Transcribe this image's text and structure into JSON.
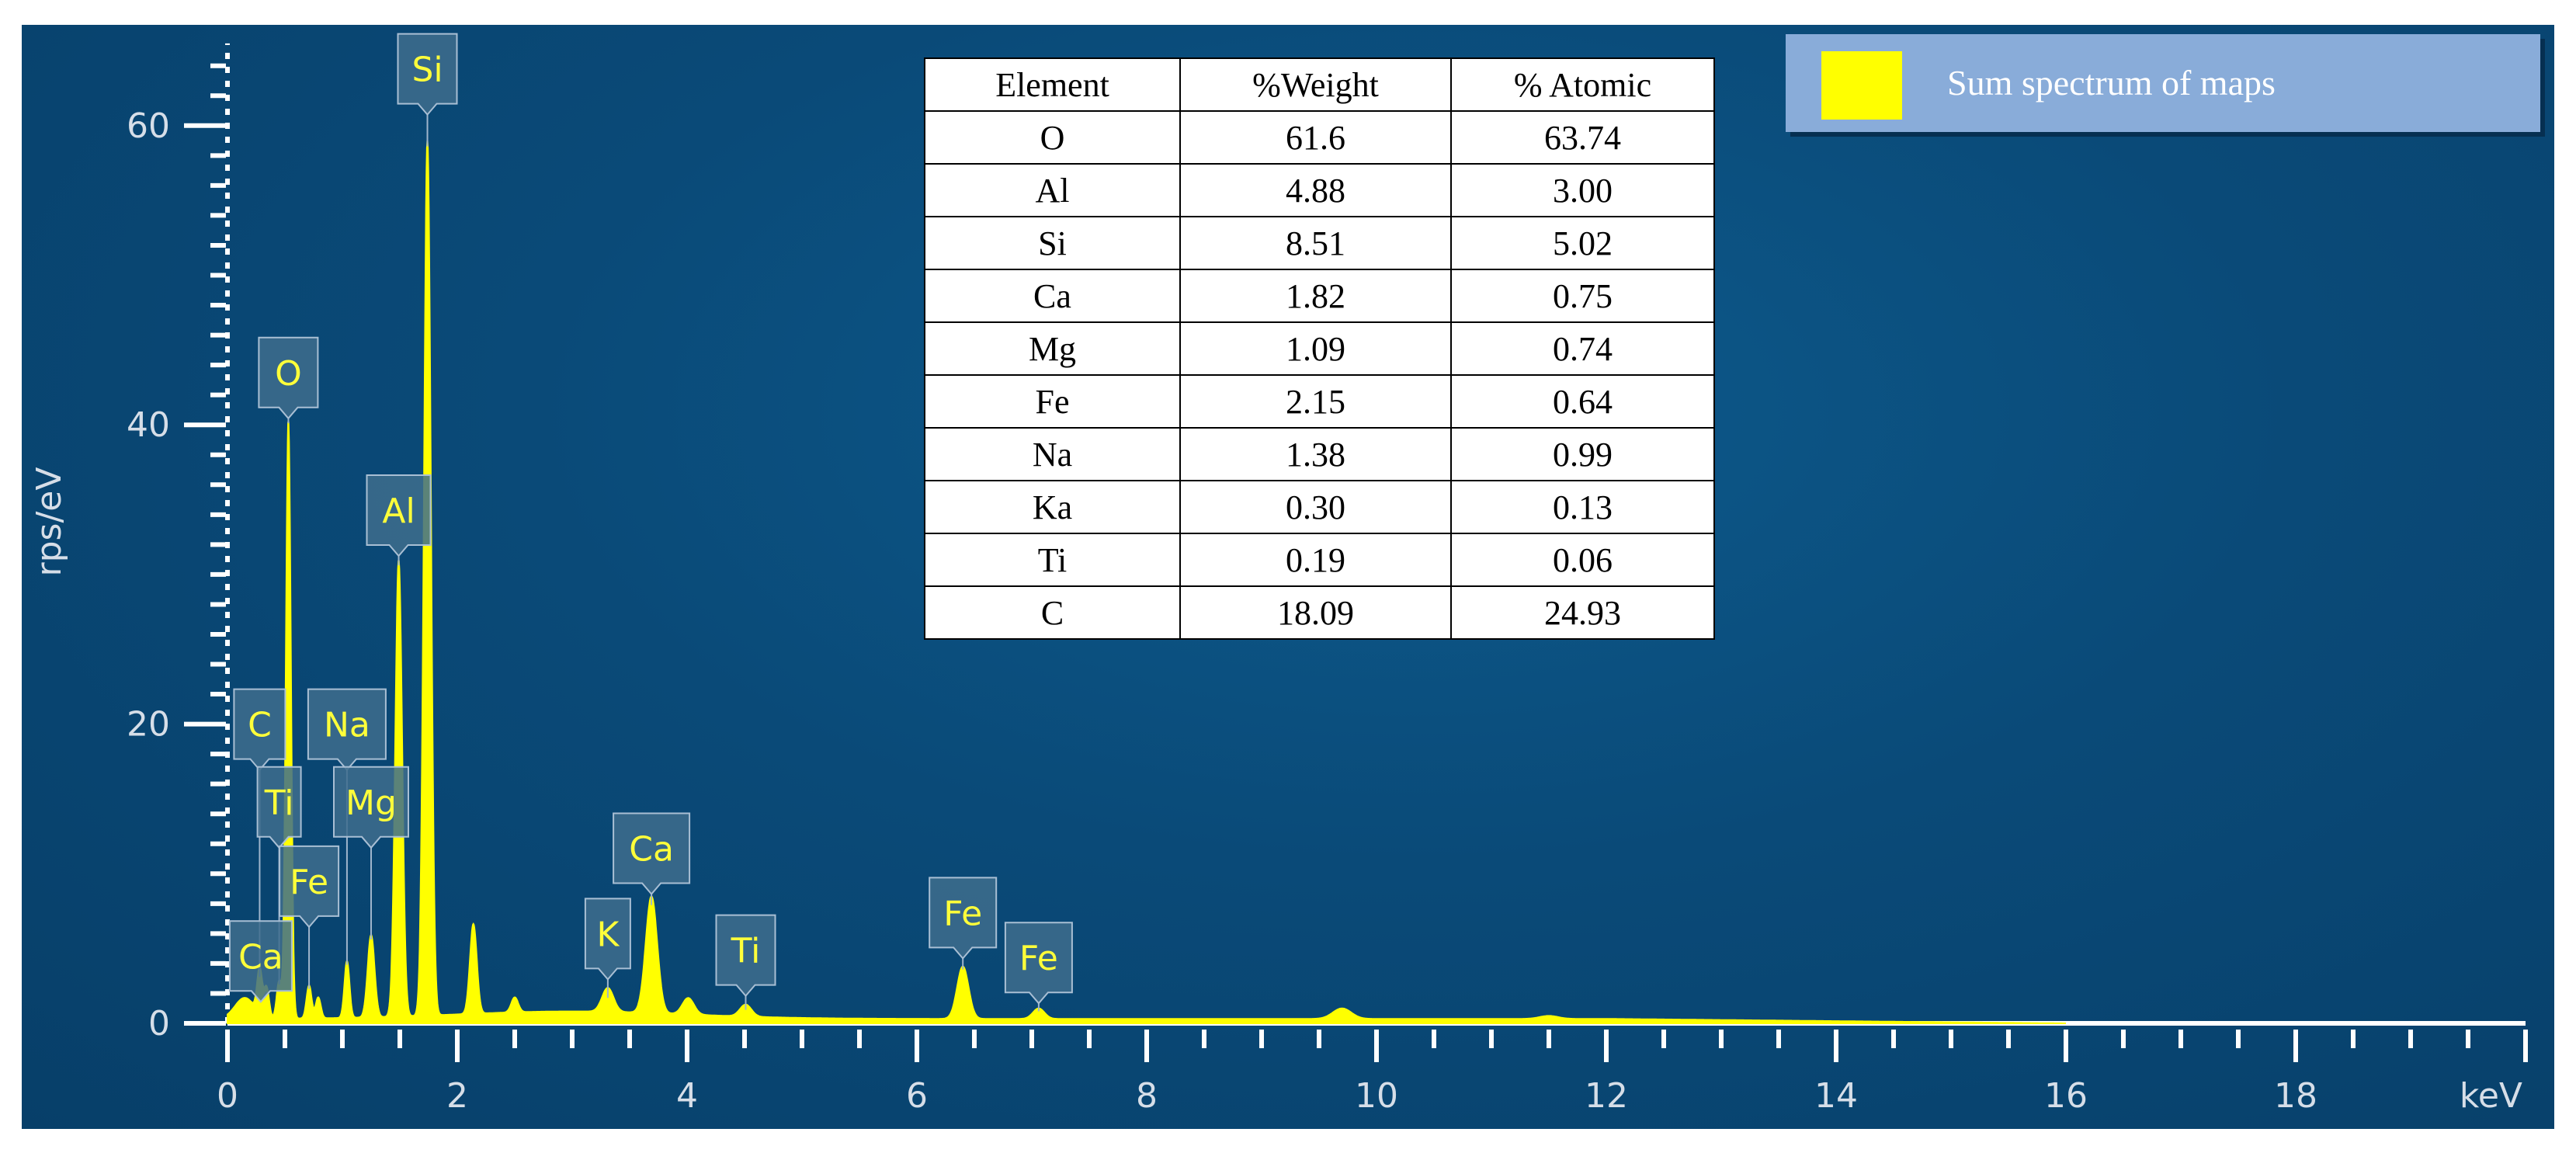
{
  "chart_data": {
    "type": "line",
    "xlabel": "keV",
    "ylabel": "rps/eV",
    "xlim": [
      0,
      20
    ],
    "ylim": [
      0,
      66
    ],
    "x_ticks": [
      "0",
      "2",
      "4",
      "6",
      "8",
      "10",
      "12",
      "14",
      "16",
      "18"
    ],
    "y_ticks": [
      "0",
      "20",
      "40",
      "60"
    ],
    "series": [
      {
        "name": "Sum spectrum of maps",
        "color": "#ffff00",
        "peaks": [
          {
            "x": 0.28,
            "y": 3.0
          },
          {
            "x": 0.34,
            "y": 2.0
          },
          {
            "x": 0.45,
            "y": 2.5
          },
          {
            "x": 0.53,
            "y": 40.0
          },
          {
            "x": 0.71,
            "y": 2.2
          },
          {
            "x": 0.79,
            "y": 1.4
          },
          {
            "x": 1.04,
            "y": 3.8
          },
          {
            "x": 1.25,
            "y": 5.5
          },
          {
            "x": 1.49,
            "y": 30.5
          },
          {
            "x": 1.74,
            "y": 58.5
          },
          {
            "x": 2.14,
            "y": 6.0
          },
          {
            "x": 2.5,
            "y": 1.0
          },
          {
            "x": 3.31,
            "y": 1.6
          },
          {
            "x": 3.69,
            "y": 7.8
          },
          {
            "x": 4.01,
            "y": 1.1
          },
          {
            "x": 4.51,
            "y": 0.8
          },
          {
            "x": 6.4,
            "y": 3.5
          },
          {
            "x": 7.06,
            "y": 0.7
          },
          {
            "x": 9.7,
            "y": 0.7
          },
          {
            "x": 11.5,
            "y": 0.2
          }
        ]
      }
    ],
    "peak_labels": [
      {
        "label": "Si",
        "x": 1.74,
        "y": 58.5
      },
      {
        "label": "O",
        "x": 0.53,
        "y": 40.0
      },
      {
        "label": "Al",
        "x": 1.49,
        "y": 30.5
      },
      {
        "label": "C",
        "x": 0.28,
        "y": 3.0
      },
      {
        "label": "Na",
        "x": 1.04,
        "y": 3.8
      },
      {
        "label": "Ti",
        "x": 0.45,
        "y": 2.5
      },
      {
        "label": "Mg",
        "x": 1.25,
        "y": 5.5
      },
      {
        "label": "Fe",
        "x": 0.71,
        "y": 2.2
      },
      {
        "label": "Ca",
        "x": 0.34,
        "y": 2.0
      },
      {
        "label": "K",
        "x": 3.31,
        "y": 1.6
      },
      {
        "label": "Ca",
        "x": 3.69,
        "y": 7.8
      },
      {
        "label": "Ti",
        "x": 4.51,
        "y": 0.8
      },
      {
        "label": "Fe",
        "x": 6.4,
        "y": 3.5
      },
      {
        "label": "Fe",
        "x": 7.06,
        "y": 0.7
      }
    ],
    "legend": {
      "label": "Sum spectrum of maps",
      "position": "top-right"
    },
    "table": {
      "headers": [
        "Element",
        "%Weight",
        "% Atomic"
      ],
      "rows": [
        [
          "O",
          "61.6",
          "63.74"
        ],
        [
          "Al",
          "4.88",
          "3.00"
        ],
        [
          "Si",
          "8.51",
          "5.02"
        ],
        [
          "Ca",
          "1.82",
          "0.75"
        ],
        [
          "Mg",
          "1.09",
          "0.74"
        ],
        [
          "Fe",
          "2.15",
          "0.64"
        ],
        [
          "Na",
          "1.38",
          "0.99"
        ],
        [
          "Ka",
          "0.30",
          "0.13"
        ],
        [
          "Ti",
          "0.19",
          "0.06"
        ],
        [
          "C",
          "18.09",
          "24.93"
        ]
      ]
    },
    "grid": false
  }
}
